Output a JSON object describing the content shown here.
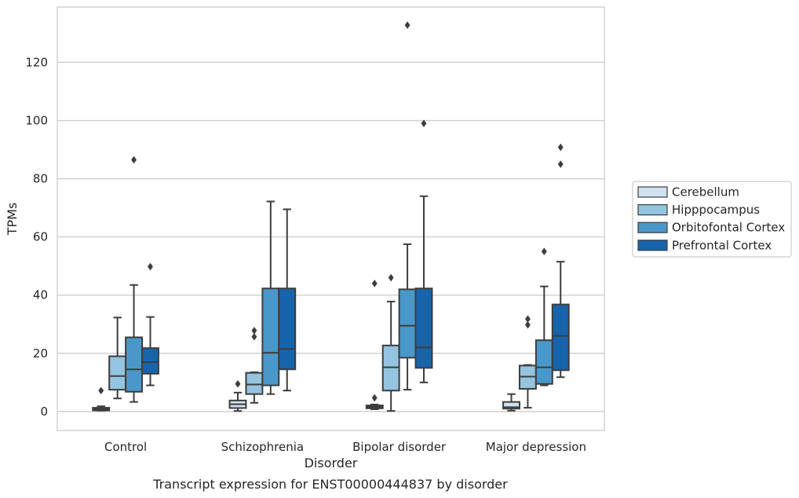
{
  "chart_data": {
    "type": "box",
    "title": "",
    "caption": "Transcript expression for ENST00000444837 by disorder",
    "xlabel": "Disorder",
    "ylabel": "TPMs",
    "ylim": [
      -6.5,
      139
    ],
    "yticks": [
      0,
      20,
      40,
      60,
      80,
      100,
      120
    ],
    "grid": "horizontal",
    "legend_position": "right",
    "categories": [
      "Control",
      "Schizophrenia",
      "Bipolar disorder",
      "Major depression"
    ],
    "series": [
      {
        "name": "Cerebellum",
        "color": "#d0e1f2",
        "boxes": [
          {
            "whisker_low": 0.3,
            "q1": 0.4,
            "median": 0.8,
            "q3": 1.3,
            "whisker_high": 1.8,
            "outliers": [
              7.2
            ]
          },
          {
            "whisker_low": 0.2,
            "q1": 1.2,
            "median": 2.5,
            "q3": 3.8,
            "whisker_high": 6.5,
            "outliers": [
              9.5
            ]
          },
          {
            "whisker_low": 0.8,
            "q1": 1.1,
            "median": 1.6,
            "q3": 2.1,
            "whisker_high": 2.4,
            "outliers": [
              4.7,
              44
            ]
          },
          {
            "whisker_low": 0.3,
            "q1": 1.0,
            "median": 1.5,
            "q3": 3.3,
            "whisker_high": 6.0,
            "outliers": []
          }
        ]
      },
      {
        "name": "Hipppocampus",
        "color": "#94c4df",
        "boxes": [
          {
            "whisker_low": 4.5,
            "q1": 7.5,
            "median": 12.2,
            "q3": 19.0,
            "whisker_high": 32.3,
            "outliers": []
          },
          {
            "whisker_low": 3.0,
            "q1": 6.0,
            "median": 9.3,
            "q3": 13.3,
            "whisker_high": 13.5,
            "outliers": [
              25.7,
              27.8
            ]
          },
          {
            "whisker_low": 0.2,
            "q1": 7.2,
            "median": 15.2,
            "q3": 22.7,
            "whisker_high": 37.8,
            "outliers": [
              46
            ]
          },
          {
            "whisker_low": 1.3,
            "q1": 7.8,
            "median": 12.0,
            "q3": 15.8,
            "whisker_high": 16.0,
            "outliers": [
              29.8,
              31.8
            ]
          }
        ]
      },
      {
        "name": "Orbitofontal Cortex",
        "color": "#4a98c9",
        "boxes": [
          {
            "whisker_low": 3.3,
            "q1": 6.8,
            "median": 14.5,
            "q3": 25.5,
            "whisker_high": 43.5,
            "outliers": [
              86.5
            ]
          },
          {
            "whisker_low": 6.0,
            "q1": 9.0,
            "median": 20.2,
            "q3": 42.3,
            "whisker_high": 72.2,
            "outliers": []
          },
          {
            "whisker_low": 7.5,
            "q1": 18.5,
            "median": 29.5,
            "q3": 42.0,
            "whisker_high": 57.5,
            "outliers": [
              132.8
            ]
          },
          {
            "whisker_low": 9.0,
            "q1": 9.5,
            "median": 15.2,
            "q3": 24.5,
            "whisker_high": 43.0,
            "outliers": [
              55
            ]
          }
        ]
      },
      {
        "name": "Prefrontal Cortex",
        "color": "#1764ab",
        "boxes": [
          {
            "whisker_low": 9.0,
            "q1": 13.0,
            "median": 17.0,
            "q3": 21.8,
            "whisker_high": 32.5,
            "outliers": [
              49.8
            ]
          },
          {
            "whisker_low": 7.2,
            "q1": 14.5,
            "median": 21.5,
            "q3": 42.3,
            "whisker_high": 69.5,
            "outliers": []
          },
          {
            "whisker_low": 10.0,
            "q1": 15.0,
            "median": 22.0,
            "q3": 42.3,
            "whisker_high": 74.0,
            "outliers": [
              99
            ]
          },
          {
            "whisker_low": 11.8,
            "q1": 14.2,
            "median": 26.0,
            "q3": 36.8,
            "whisker_high": 51.5,
            "outliers": [
              85,
              90.8
            ]
          }
        ]
      }
    ]
  }
}
